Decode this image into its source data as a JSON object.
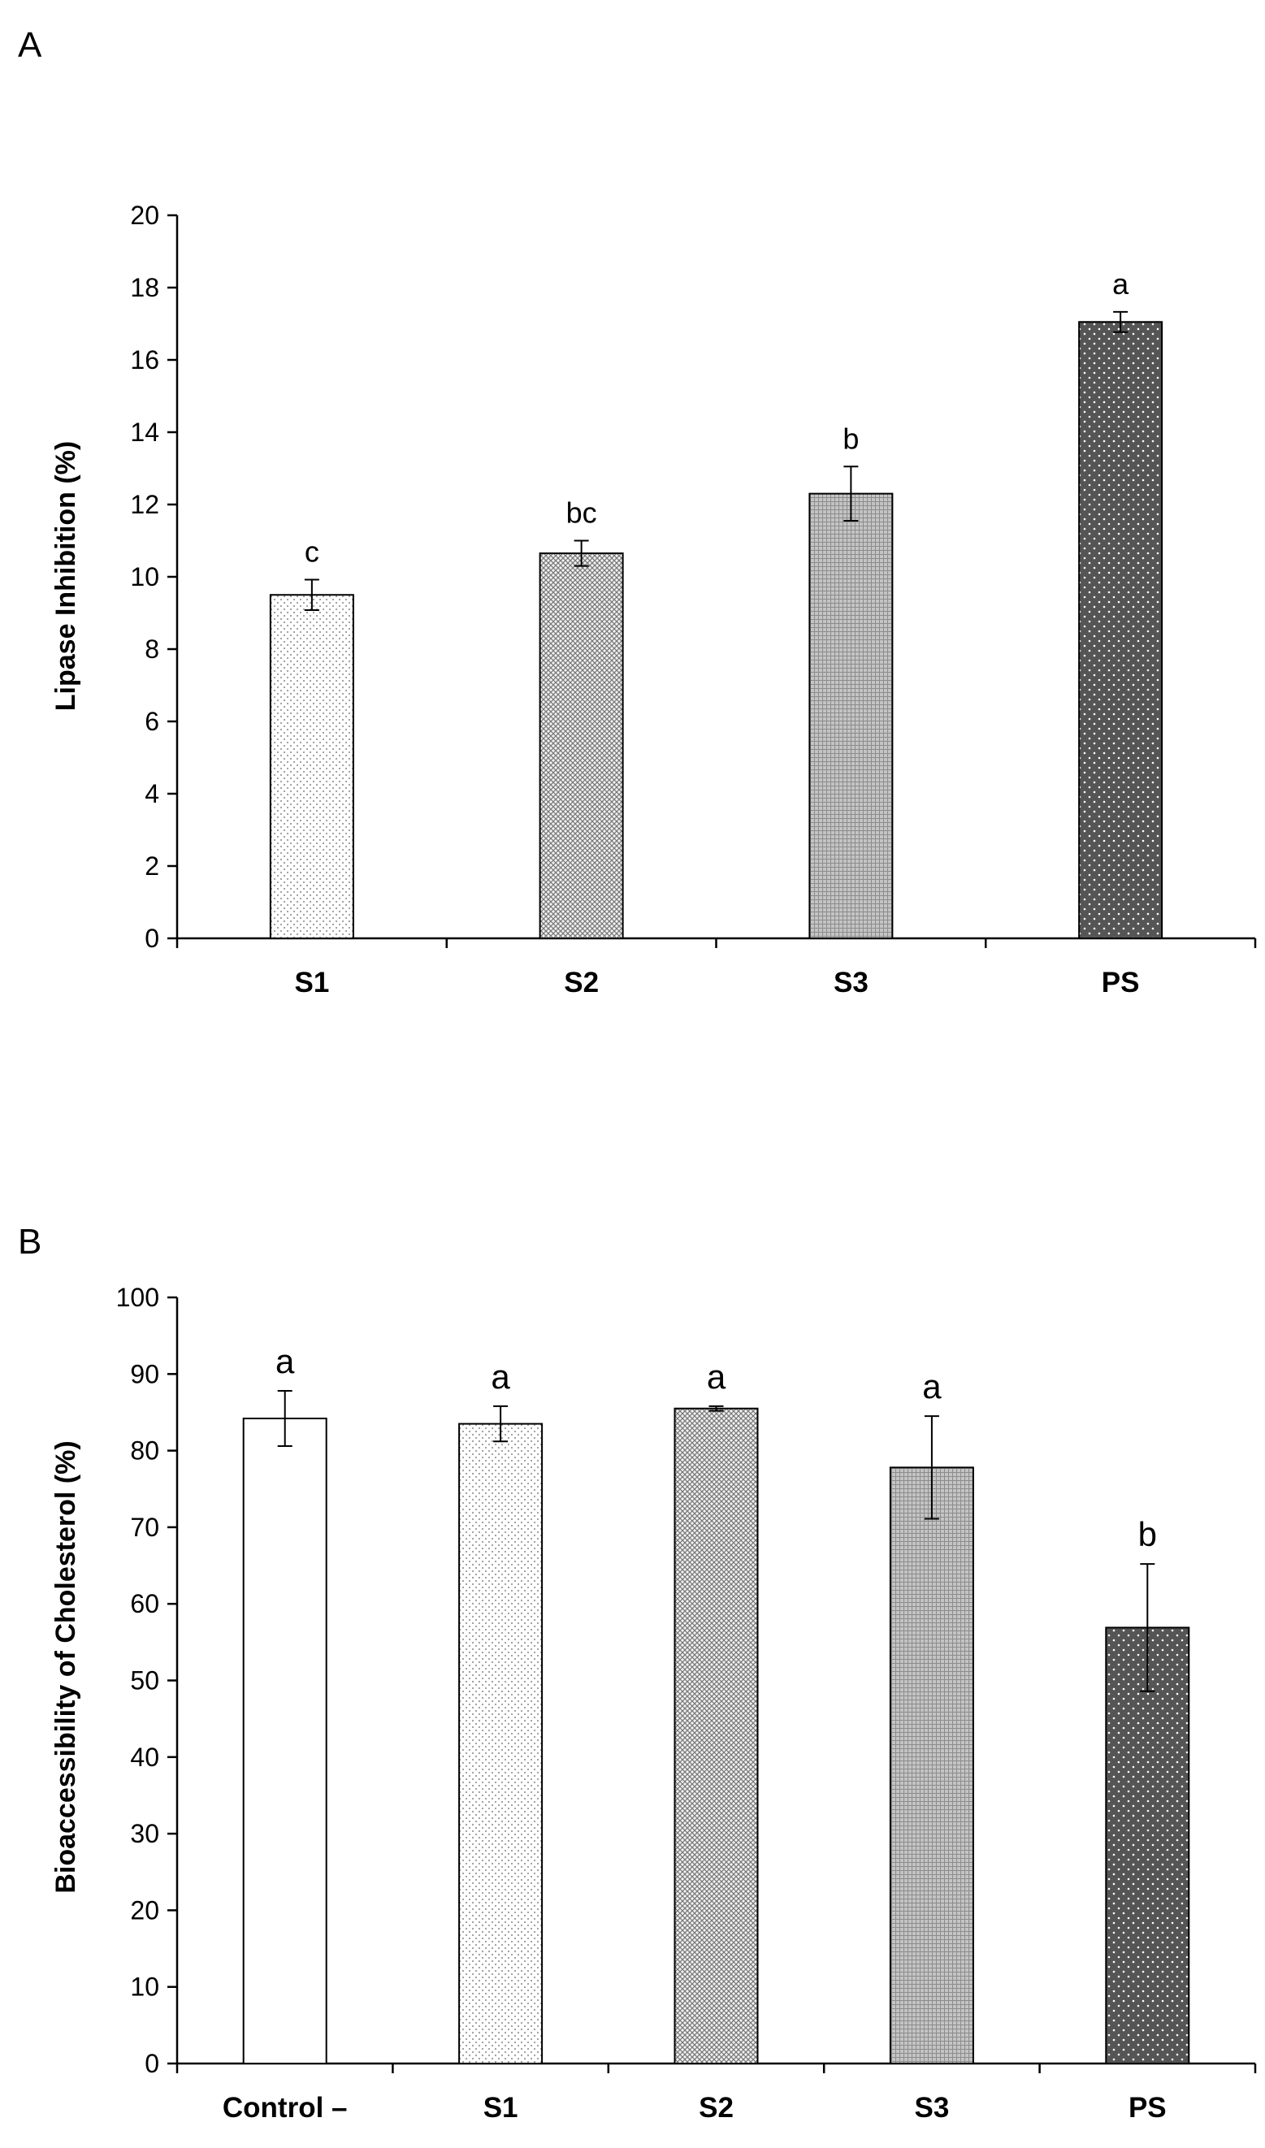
{
  "chart_data": [
    {
      "panel_label": "A",
      "type": "bar",
      "categories": [
        "S1",
        "S2",
        "S3",
        "PS"
      ],
      "values": [
        9.5,
        10.65,
        12.3,
        17.05
      ],
      "errors": [
        0.42,
        0.35,
        0.75,
        0.28
      ],
      "significance": [
        "c",
        "bc",
        "b",
        "a"
      ],
      "patterns": [
        "dots-light",
        "crosshatch",
        "grid",
        "dots-dark"
      ],
      "xlabel": "",
      "ylabel": "Lipase Inhibition (%)",
      "ylim": [
        0,
        20
      ],
      "yticks": [
        0,
        2,
        4,
        6,
        8,
        10,
        12,
        14,
        16,
        18,
        20
      ],
      "grid": false,
      "legend": "none"
    },
    {
      "panel_label": "B",
      "type": "bar",
      "categories": [
        "Control –",
        "S1",
        "S2",
        "S3",
        "PS"
      ],
      "values": [
        84.2,
        83.5,
        85.5,
        77.8,
        56.9
      ],
      "errors": [
        3.6,
        2.3,
        0.3,
        6.7,
        8.3
      ],
      "significance": [
        "a",
        "a",
        "a",
        "a",
        "b"
      ],
      "patterns": [
        "blank",
        "dots-light",
        "crosshatch",
        "grid",
        "dots-dark"
      ],
      "xlabel": "",
      "ylabel": "Bioaccessibility of Cholesterol (%)",
      "ylim": [
        0,
        100
      ],
      "yticks": [
        0,
        10,
        20,
        30,
        40,
        50,
        60,
        70,
        80,
        90,
        100
      ],
      "grid": false,
      "legend": "none"
    }
  ],
  "colors": {
    "axis": "#000000",
    "bar_outline": "#000000",
    "blank_fill": "#ffffff",
    "light_dot": "#9a9a9a",
    "crosshatch": "#7a7a7a",
    "grid_fill": "#b8b8b8",
    "dark_fill": "#555555",
    "dark_dot": "#ffffff"
  }
}
